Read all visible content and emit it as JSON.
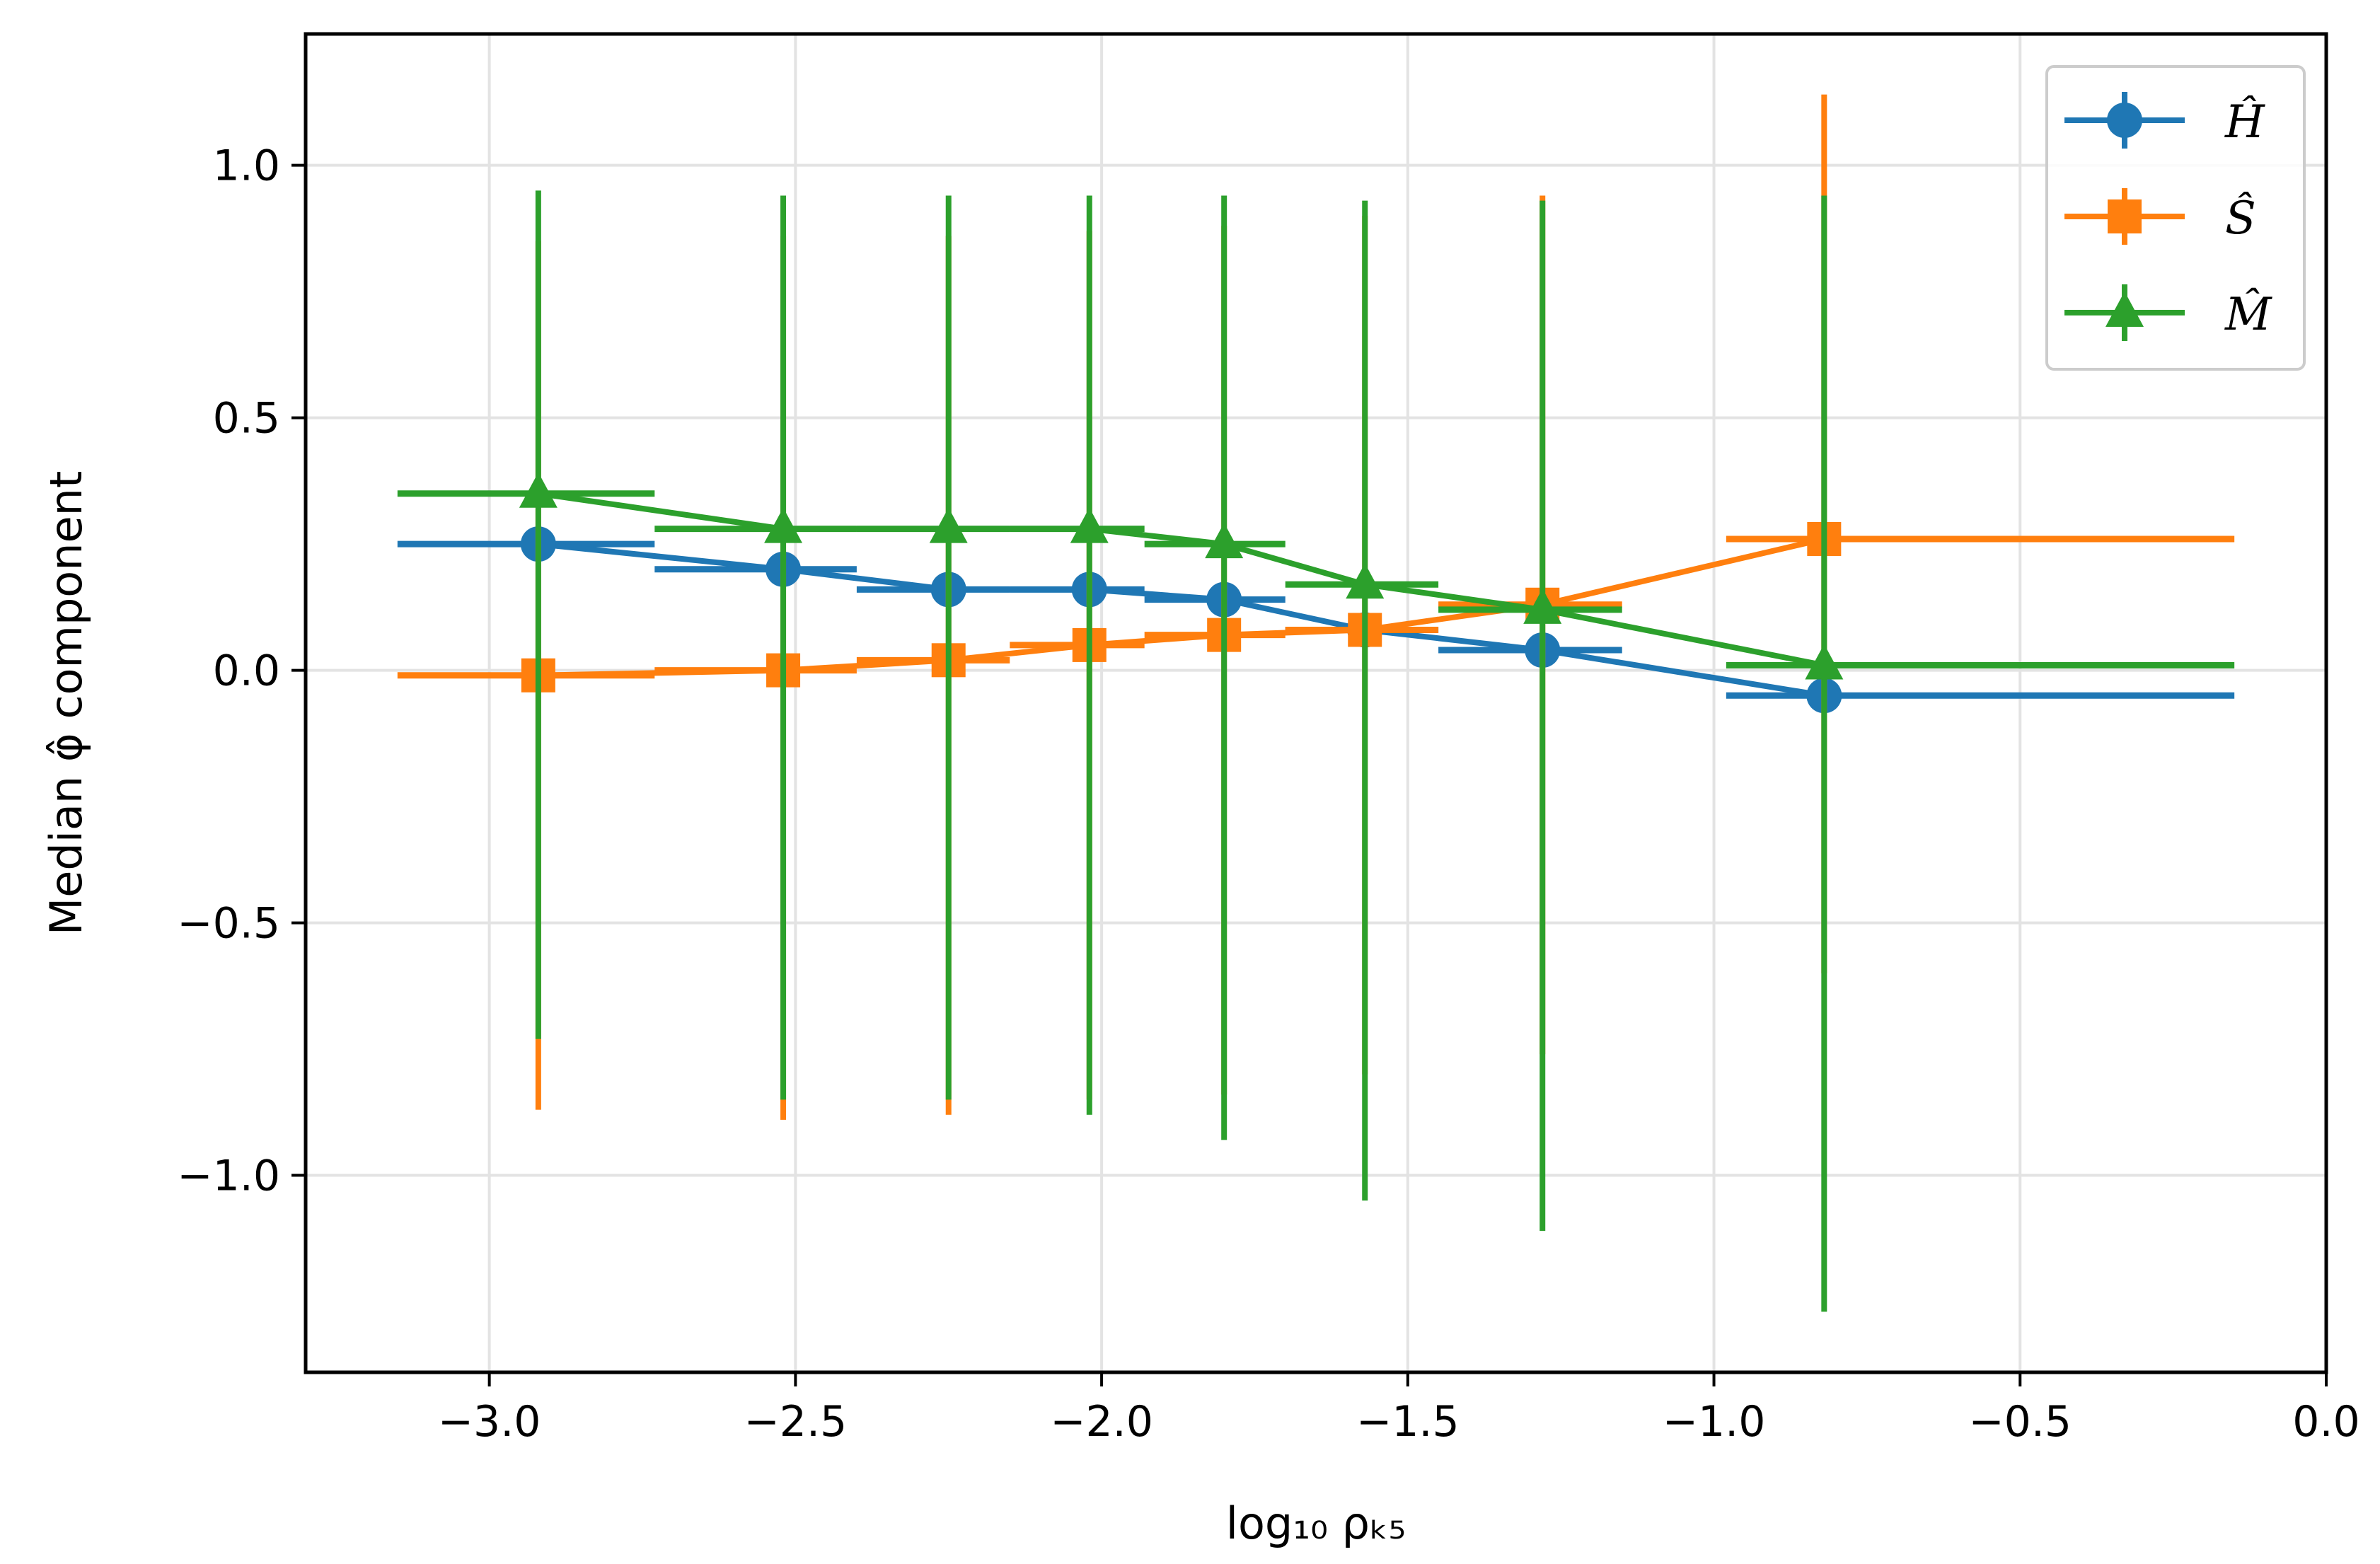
{
  "chart_data": {
    "type": "line",
    "xlabel": "log₁₀ ρₖ₅",
    "ylabel": "Median φ̂ component",
    "xlim": [
      -3.3,
      0.0
    ],
    "ylim": [
      -1.39,
      1.26
    ],
    "xticks": [
      -3.0,
      -2.5,
      -2.0,
      -1.5,
      -1.0,
      -0.5,
      0.0
    ],
    "xtick_labels": [
      "−3.0",
      "−2.5",
      "−2.0",
      "−1.5",
      "−1.0",
      "−0.5",
      "0.0"
    ],
    "yticks": [
      -1.0,
      -0.5,
      0.0,
      0.5,
      1.0
    ],
    "ytick_labels": [
      "−1.0",
      "−0.5",
      "0.0",
      "0.5",
      "1.0"
    ],
    "grid": true,
    "legend_position": "top-right",
    "x": [
      -2.92,
      -2.52,
      -2.25,
      -2.02,
      -1.8,
      -1.57,
      -1.28,
      -0.82
    ],
    "xerr_low": [
      -3.15,
      -2.73,
      -2.4,
      -2.15,
      -1.93,
      -1.7,
      -1.45,
      -0.98
    ],
    "xerr_high": [
      -2.73,
      -2.4,
      -2.15,
      -1.93,
      -1.7,
      -1.45,
      -1.15,
      -0.15
    ],
    "series": [
      {
        "name": "Ĥ",
        "marker": "circle",
        "color": "#1f77b4",
        "y": [
          0.25,
          0.2,
          0.16,
          0.16,
          0.14,
          0.08,
          0.04,
          -0.05
        ],
        "yerr_low": [
          null,
          null,
          null,
          null,
          null,
          null,
          null,
          null
        ],
        "yerr_high": [
          null,
          null,
          null,
          null,
          null,
          null,
          null,
          null
        ]
      },
      {
        "name": "Ŝ",
        "marker": "square",
        "color": "#ff7f0e",
        "y": [
          -0.01,
          0.0,
          0.02,
          0.05,
          0.07,
          0.08,
          0.13,
          0.26
        ],
        "yerr_low": [
          -0.87,
          -0.89,
          -0.88,
          -0.85,
          -0.84,
          -0.8,
          -0.76,
          -0.6
        ],
        "yerr_high": [
          0.85,
          0.86,
          0.86,
          0.87,
          0.88,
          0.9,
          0.94,
          1.14
        ]
      },
      {
        "name": "M̂",
        "marker": "triangle",
        "color": "#2ca02c",
        "y": [
          0.35,
          0.28,
          0.28,
          0.28,
          0.25,
          0.17,
          0.12,
          0.01
        ],
        "yerr_low": [
          -0.73,
          -0.85,
          -0.85,
          -0.88,
          -0.93,
          -1.05,
          -1.11,
          -1.27
        ],
        "yerr_high": [
          0.95,
          0.94,
          0.94,
          0.94,
          0.94,
          0.93,
          0.93,
          0.94
        ]
      }
    ]
  }
}
